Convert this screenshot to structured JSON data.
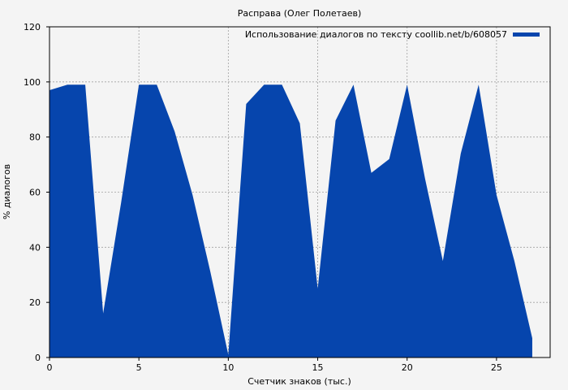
{
  "chart_data": {
    "type": "area",
    "title": "Расправа (Олег Полетаев)",
    "xlabel": "Счетчик знаков (тыс.)",
    "ylabel": "% диалогов",
    "xlim": [
      0,
      28
    ],
    "ylim": [
      0,
      120
    ],
    "xticks": [
      0,
      5,
      10,
      15,
      20,
      25
    ],
    "yticks": [
      0,
      20,
      40,
      60,
      80,
      100,
      120
    ],
    "grid": true,
    "legend_position": "top-right",
    "series": [
      {
        "name": "Использование диалогов по тексту coollib.net/b/608057",
        "color": "#0645ad",
        "x": [
          0,
          1,
          2,
          3,
          4,
          5,
          6,
          7,
          8,
          9,
          10,
          11,
          12,
          13,
          14,
          15,
          16,
          17,
          18,
          19,
          20,
          21,
          22,
          23,
          24,
          25,
          26,
          27
        ],
        "y": [
          97,
          99,
          99,
          16,
          56,
          99,
          99,
          82,
          59,
          31,
          1,
          92,
          99,
          99,
          85,
          25,
          86,
          99,
          67,
          72,
          99,
          65,
          35,
          74,
          99,
          59,
          35,
          7
        ]
      }
    ]
  }
}
